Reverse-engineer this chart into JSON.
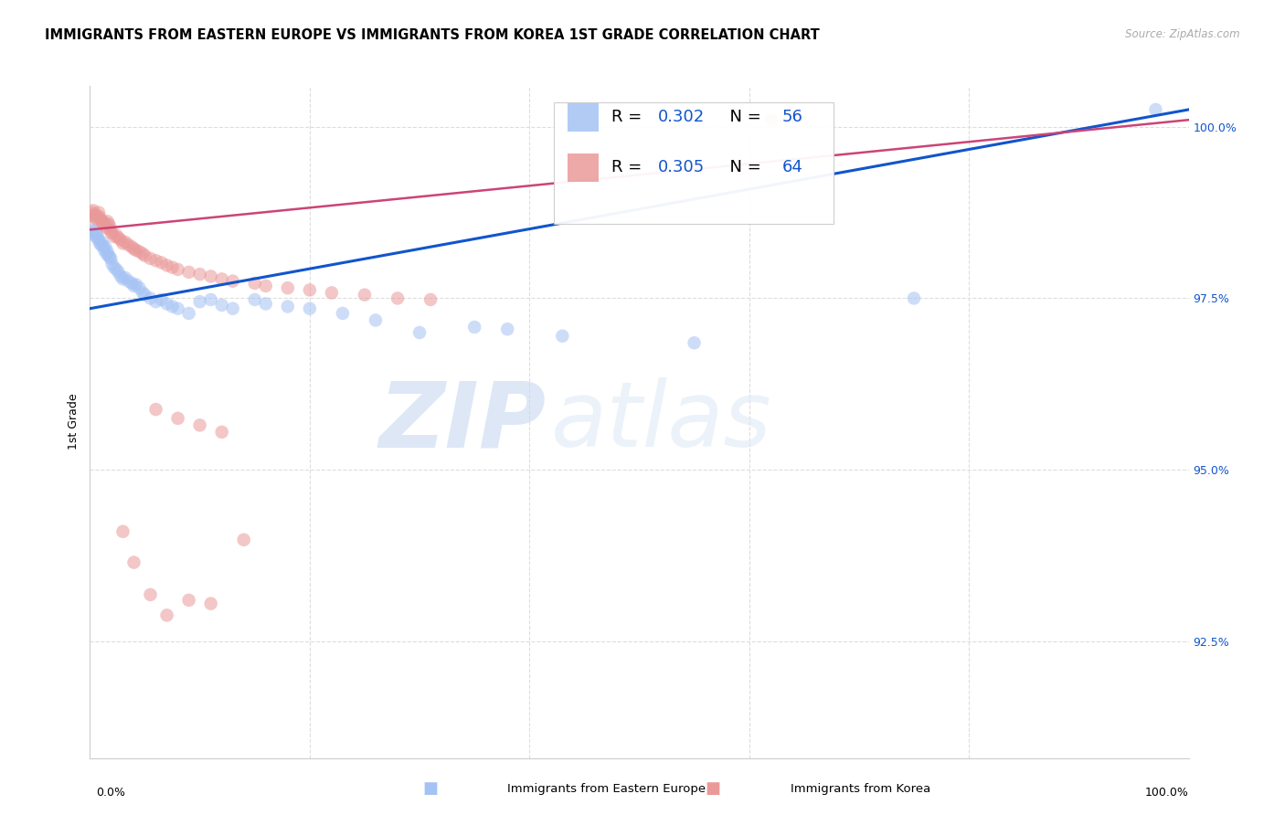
{
  "title": "IMMIGRANTS FROM EASTERN EUROPE VS IMMIGRANTS FROM KOREA 1ST GRADE CORRELATION CHART",
  "source": "Source: ZipAtlas.com",
  "ylabel": "1st Grade",
  "ylabel_right_labels": [
    "100.0%",
    "97.5%",
    "95.0%",
    "92.5%"
  ],
  "ylabel_right_values": [
    1.0,
    0.975,
    0.95,
    0.925
  ],
  "blue_color": "#a4c2f4",
  "pink_color": "#ea9999",
  "trend_blue": "#1155cc",
  "trend_pink": "#cc4477",
  "blue_label": "Immigrants from Eastern Europe",
  "pink_label": "Immigrants from Korea",
  "xlim": [
    0.0,
    1.0
  ],
  "ylim": [
    0.908,
    1.006
  ],
  "blue_trend_y_start": 0.9735,
  "blue_trend_y_end": 1.0025,
  "pink_trend_y_start": 0.985,
  "pink_trend_y_end": 1.001,
  "watermark_zip": "ZIP",
  "watermark_atlas": "atlas",
  "background_color": "#ffffff",
  "grid_color": "#dddddd",
  "right_axis_color": "#1155cc",
  "legend_r_color": "#1155cc",
  "legend_n_color": "#1155cc"
}
